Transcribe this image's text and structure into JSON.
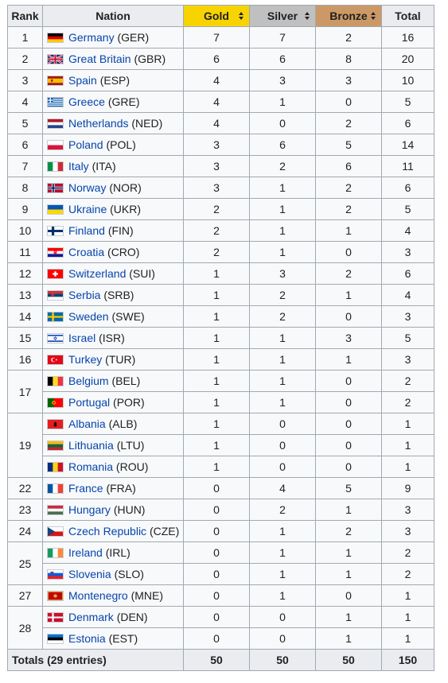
{
  "headers": {
    "rank": "Rank",
    "nation": "Nation",
    "gold": "Gold",
    "silver": "Silver",
    "bronze": "Bronze",
    "total": "Total"
  },
  "rows": [
    {
      "rank": "1",
      "nation": "Germany",
      "code": "(GER)",
      "gold": "7",
      "silver": "7",
      "bronze": "2",
      "total": "16",
      "flag": "flag-germany"
    },
    {
      "rank": "2",
      "nation": "Great Britain",
      "code": "(GBR)",
      "gold": "6",
      "silver": "6",
      "bronze": "8",
      "total": "20",
      "flag": "flag-great-britain"
    },
    {
      "rank": "3",
      "nation": "Spain",
      "code": "(ESP)",
      "gold": "4",
      "silver": "3",
      "bronze": "3",
      "total": "10",
      "flag": "flag-spain"
    },
    {
      "rank": "4",
      "nation": "Greece",
      "code": "(GRE)",
      "gold": "4",
      "silver": "1",
      "bronze": "0",
      "total": "5",
      "flag": "flag-greece"
    },
    {
      "rank": "5",
      "nation": "Netherlands",
      "code": "(NED)",
      "gold": "4",
      "silver": "0",
      "bronze": "2",
      "total": "6",
      "flag": "flag-netherlands"
    },
    {
      "rank": "6",
      "nation": "Poland",
      "code": "(POL)",
      "gold": "3",
      "silver": "6",
      "bronze": "5",
      "total": "14",
      "flag": "flag-poland"
    },
    {
      "rank": "7",
      "nation": "Italy",
      "code": "(ITA)",
      "gold": "3",
      "silver": "2",
      "bronze": "6",
      "total": "11",
      "flag": "flag-italy"
    },
    {
      "rank": "8",
      "nation": "Norway",
      "code": "(NOR)",
      "gold": "3",
      "silver": "1",
      "bronze": "2",
      "total": "6",
      "flag": "flag-norway"
    },
    {
      "rank": "9",
      "nation": "Ukraine",
      "code": "(UKR)",
      "gold": "2",
      "silver": "1",
      "bronze": "2",
      "total": "5",
      "flag": "flag-ukraine"
    },
    {
      "rank": "10",
      "nation": "Finland",
      "code": "(FIN)",
      "gold": "2",
      "silver": "1",
      "bronze": "1",
      "total": "4",
      "flag": "flag-finland"
    },
    {
      "rank": "11",
      "nation": "Croatia",
      "code": "(CRO)",
      "gold": "2",
      "silver": "1",
      "bronze": "0",
      "total": "3",
      "flag": "flag-croatia"
    },
    {
      "rank": "12",
      "nation": "Switzerland",
      "code": "(SUI)",
      "gold": "1",
      "silver": "3",
      "bronze": "2",
      "total": "6",
      "flag": "flag-switzerland"
    },
    {
      "rank": "13",
      "nation": "Serbia",
      "code": "(SRB)",
      "gold": "1",
      "silver": "2",
      "bronze": "1",
      "total": "4",
      "flag": "flag-serbia"
    },
    {
      "rank": "14",
      "nation": "Sweden",
      "code": "(SWE)",
      "gold": "1",
      "silver": "2",
      "bronze": "0",
      "total": "3",
      "flag": "flag-sweden"
    },
    {
      "rank": "15",
      "nation": "Israel",
      "code": "(ISR)",
      "gold": "1",
      "silver": "1",
      "bronze": "3",
      "total": "5",
      "flag": "flag-israel"
    },
    {
      "rank": "16",
      "nation": "Turkey",
      "code": "(TUR)",
      "gold": "1",
      "silver": "1",
      "bronze": "1",
      "total": "3",
      "flag": "flag-turkey"
    },
    {
      "rank": "17",
      "rankspan": 2,
      "nation": "Belgium",
      "code": "(BEL)",
      "gold": "1",
      "silver": "1",
      "bronze": "0",
      "total": "2",
      "flag": "flag-belgium"
    },
    {
      "nation": "Portugal",
      "code": "(POR)",
      "gold": "1",
      "silver": "1",
      "bronze": "0",
      "total": "2",
      "flag": "flag-portugal"
    },
    {
      "rank": "19",
      "rankspan": 3,
      "nation": "Albania",
      "code": "(ALB)",
      "gold": "1",
      "silver": "0",
      "bronze": "0",
      "total": "1",
      "flag": "flag-albania"
    },
    {
      "nation": "Lithuania",
      "code": "(LTU)",
      "gold": "1",
      "silver": "0",
      "bronze": "0",
      "total": "1",
      "flag": "flag-lithuania"
    },
    {
      "nation": "Romania",
      "code": "(ROU)",
      "gold": "1",
      "silver": "0",
      "bronze": "0",
      "total": "1",
      "flag": "flag-romania"
    },
    {
      "rank": "22",
      "nation": "France",
      "code": "(FRA)",
      "gold": "0",
      "silver": "4",
      "bronze": "5",
      "total": "9",
      "flag": "flag-france"
    },
    {
      "rank": "23",
      "nation": "Hungary",
      "code": "(HUN)",
      "gold": "0",
      "silver": "2",
      "bronze": "1",
      "total": "3",
      "flag": "flag-hungary"
    },
    {
      "rank": "24",
      "nation": "Czech Republic",
      "code": "(CZE)",
      "gold": "0",
      "silver": "1",
      "bronze": "2",
      "total": "3",
      "flag": "flag-czech-republic"
    },
    {
      "rank": "25",
      "rankspan": 2,
      "nation": "Ireland",
      "code": "(IRL)",
      "gold": "0",
      "silver": "1",
      "bronze": "1",
      "total": "2",
      "flag": "flag-ireland"
    },
    {
      "nation": "Slovenia",
      "code": "(SLO)",
      "gold": "0",
      "silver": "1",
      "bronze": "1",
      "total": "2",
      "flag": "flag-slovenia"
    },
    {
      "rank": "27",
      "nation": "Montenegro",
      "code": "(MNE)",
      "gold": "0",
      "silver": "1",
      "bronze": "0",
      "total": "1",
      "flag": "flag-montenegro"
    },
    {
      "rank": "28",
      "rankspan": 2,
      "nation": "Denmark",
      "code": "(DEN)",
      "gold": "0",
      "silver": "0",
      "bronze": "1",
      "total": "1",
      "flag": "flag-denmark"
    },
    {
      "nation": "Estonia",
      "code": "(EST)",
      "gold": "0",
      "silver": "0",
      "bronze": "1",
      "total": "1",
      "flag": "flag-estonia"
    }
  ],
  "totals": {
    "label": "Totals (29 entries)",
    "gold": "50",
    "silver": "50",
    "bronze": "50",
    "total": "150"
  },
  "colors": {
    "gold_header": "#f7d400",
    "silver_header": "#c0c0c0",
    "bronze_header": "#cc9966",
    "link": "#0645ad",
    "border": "#a2a9b1"
  }
}
